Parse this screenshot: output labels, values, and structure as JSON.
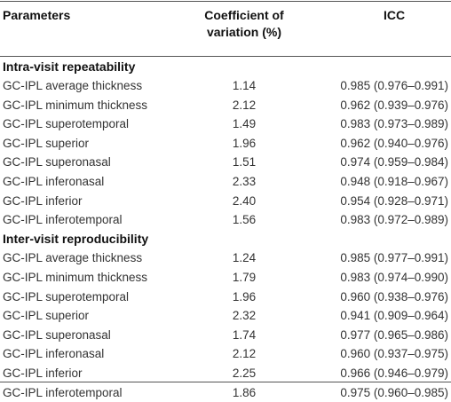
{
  "headers": {
    "parameters": "Parameters",
    "coefficient_line1": "Coefficient of",
    "coefficient_line2": "variation (%)",
    "icc": "ICC"
  },
  "sections": [
    {
      "title": "Intra-visit repeatability",
      "rows": [
        {
          "parameter": "GC-IPL average thickness",
          "cv": "1.14",
          "icc": "0.985 (0.976–0.991)"
        },
        {
          "parameter": "GC-IPL minimum thickness",
          "cv": "2.12",
          "icc": "0.962 (0.939–0.976)"
        },
        {
          "parameter": "GC-IPL superotemporal",
          "cv": "1.49",
          "icc": "0.983 (0.973–0.989)"
        },
        {
          "parameter": "GC-IPL superior",
          "cv": "1.96",
          "icc": "0.962 (0.940–0.976)"
        },
        {
          "parameter": "GC-IPL superonasal",
          "cv": "1.51",
          "icc": "0.974 (0.959–0.984)"
        },
        {
          "parameter": "GC-IPL inferonasal",
          "cv": "2.33",
          "icc": "0.948 (0.918–0.967)"
        },
        {
          "parameter": "GC-IPL inferior",
          "cv": "2.40",
          "icc": "0.954 (0.928–0.971)"
        },
        {
          "parameter": "GC-IPL inferotemporal",
          "cv": "1.56",
          "icc": "0.983 (0.972–0.989)"
        }
      ]
    },
    {
      "title": "Inter-visit reproducibility",
      "rows": [
        {
          "parameter": "GC-IPL average thickness",
          "cv": "1.24",
          "icc": "0.985 (0.977–0.991)"
        },
        {
          "parameter": "GC-IPL minimum thickness",
          "cv": "1.79",
          "icc": "0.983 (0.974–0.990)"
        },
        {
          "parameter": "GC-IPL superotemporal",
          "cv": "1.96",
          "icc": "0.960 (0.938–0.976)"
        },
        {
          "parameter": "GC-IPL superior",
          "cv": "2.32",
          "icc": "0.941 (0.909–0.964)"
        },
        {
          "parameter": "GC-IPL superonasal",
          "cv": "1.74",
          "icc": "0.977 (0.965–0.986)"
        },
        {
          "parameter": "GC-IPL inferonasal",
          "cv": "2.12",
          "icc": "0.960 (0.937–0.975)"
        },
        {
          "parameter": "GC-IPL inferior",
          "cv": "2.25",
          "icc": "0.966 (0.946–0.979)"
        },
        {
          "parameter": "GC-IPL inferotemporal",
          "cv": "1.86",
          "icc": "0.975 (0.960–0.985)"
        }
      ]
    }
  ]
}
